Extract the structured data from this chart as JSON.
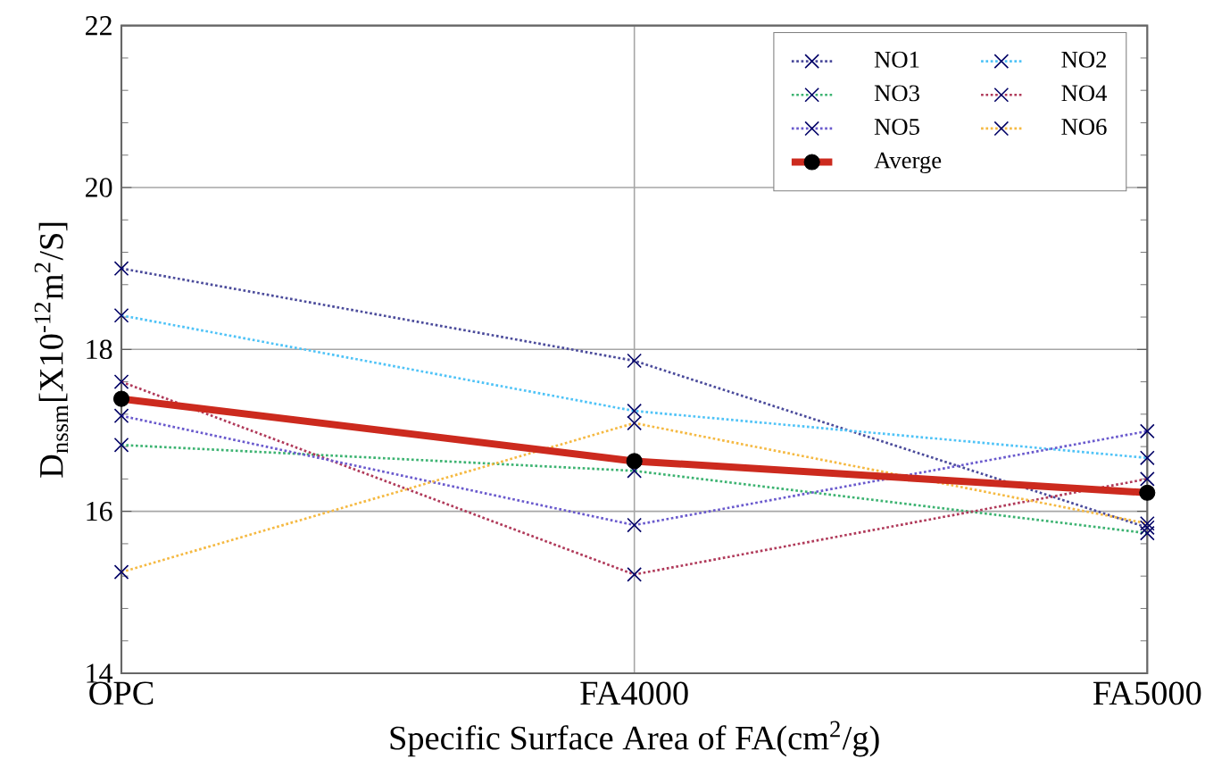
{
  "chart_data": {
    "type": "line",
    "xlabel": "Specific Surface Area of FA(cm$^{2}$/g)",
    "ylabel": "D$_{nssm}$[X10$^{-12}$m$^{2}$/S]",
    "categories": [
      "OPC",
      "FA4000",
      "FA5000"
    ],
    "ylim": [
      14,
      22
    ],
    "yticks": [
      14,
      16,
      18,
      20,
      22
    ],
    "grid": true,
    "legend": "top right",
    "series": [
      {
        "name": "NO1",
        "color": "#4b4b9b",
        "marker": "cross",
        "line_style": "dotted",
        "values": [
          19.0,
          17.86,
          15.8
        ]
      },
      {
        "name": "NO2",
        "color": "#4fc3f7",
        "marker": "cross",
        "line_style": "dotted",
        "values": [
          18.42,
          17.24,
          16.66
        ]
      },
      {
        "name": "NO3",
        "color": "#3cb371",
        "marker": "cross",
        "line_style": "dotted",
        "values": [
          16.82,
          16.5,
          15.73
        ]
      },
      {
        "name": "NO4",
        "color": "#b03a5a",
        "marker": "cross",
        "line_style": "dotted",
        "values": [
          17.6,
          15.22,
          16.4
        ]
      },
      {
        "name": "NO5",
        "color": "#6a5acd",
        "marker": "cross",
        "line_style": "dotted",
        "values": [
          17.18,
          15.83,
          16.99
        ]
      },
      {
        "name": "NO6",
        "color": "#f5b942",
        "marker": "cross",
        "line_style": "dotted",
        "values": [
          15.25,
          17.09,
          15.85
        ]
      },
      {
        "name": "Averge",
        "color": "#cc2a1e",
        "marker": "circle",
        "line_style": "solid",
        "values": [
          17.39,
          16.62,
          16.23
        ]
      }
    ]
  }
}
